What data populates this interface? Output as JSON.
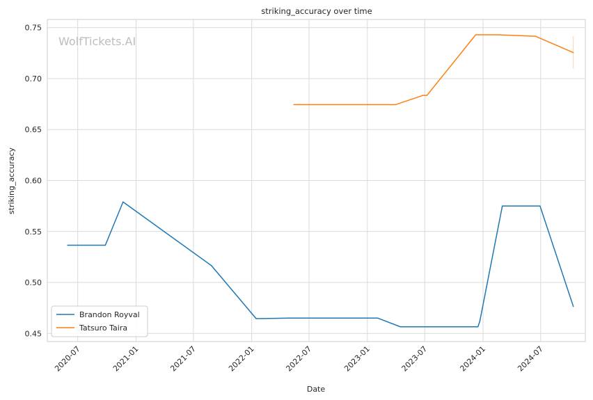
{
  "chart_data": {
    "type": "line",
    "title": "striking_accuracy over time",
    "xlabel": "Date",
    "ylabel": "striking_accuracy",
    "watermark": "WolfTickets.AI",
    "x_axis": {
      "type": "date",
      "range": [
        "2020-03-27",
        "2024-11-19"
      ]
    },
    "ylim": [
      0.442,
      0.758
    ],
    "x_ticks": [
      "2020-07",
      "2021-01",
      "2021-07",
      "2022-01",
      "2022-07",
      "2023-01",
      "2023-07",
      "2024-01",
      "2024-07"
    ],
    "y_ticks": [
      "0.45",
      "0.50",
      "0.55",
      "0.60",
      "0.65",
      "0.70",
      "0.75"
    ],
    "grid": true,
    "legend": {
      "position": "lower-left"
    },
    "series": [
      {
        "name": "Brandon Royval",
        "color": "#1f77b4",
        "points": [
          [
            "2020-05-30",
            0.5365
          ],
          [
            "2020-09-26",
            0.5365
          ],
          [
            "2020-11-21",
            0.579
          ],
          [
            "2021-08-27",
            0.5165
          ],
          [
            "2022-01-15",
            0.4645
          ],
          [
            "2022-04-30",
            0.465
          ],
          [
            "2023-02-03",
            0.465
          ],
          [
            "2023-04-15",
            0.4565
          ],
          [
            "2023-12-16",
            0.4565
          ],
          [
            "2023-12-22",
            0.462
          ],
          [
            "2024-03-02",
            0.575
          ],
          [
            "2024-06-29",
            0.575
          ],
          [
            "2024-10-12",
            0.4765
          ]
        ]
      },
      {
        "name": "Tatsuro Taira",
        "color": "#ff7f0e",
        "points": [
          [
            "2022-05-14",
            0.6745
          ],
          [
            "2023-04-01",
            0.6745
          ],
          [
            "2023-06-25",
            0.6835
          ],
          [
            "2023-07-08",
            0.6835
          ],
          [
            "2023-12-09",
            0.743
          ],
          [
            "2024-02-17",
            0.743
          ],
          [
            "2024-06-15",
            0.7415
          ],
          [
            "2024-10-12",
            0.7255
          ]
        ],
        "error_bar": {
          "x": "2024-10-12",
          "low": 0.7095,
          "high": 0.7415
        }
      }
    ]
  }
}
